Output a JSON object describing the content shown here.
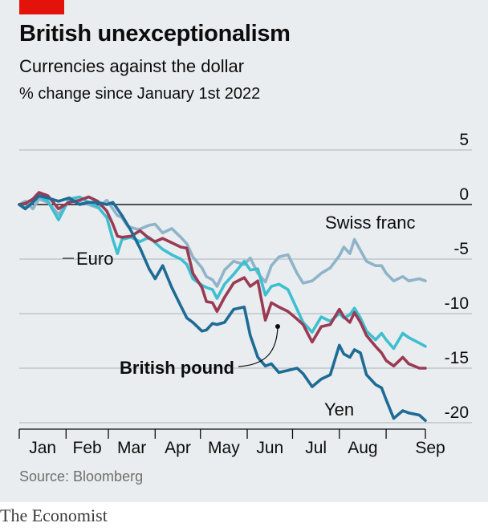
{
  "title": "British unexceptionalism",
  "subtitle": "Currencies against the dollar",
  "unit_label": "% change since January 1st 2022",
  "source": "Source: Bloomberg",
  "footer": "The Economist",
  "colors": {
    "euro": "#3ebfd0",
    "swiss_franc": "#8fb3c9",
    "british_pound": "#9a3b54",
    "yen": "#1e6b96",
    "grid": "#a7b3bb",
    "zero_line": "#1a1a1a",
    "panel": "#e9edf0",
    "brand_red": "#e3120b"
  },
  "chart_data": {
    "type": "line",
    "title": "British unexceptionalism",
    "subtitle": "Currencies against the dollar",
    "ylabel": "% change since January 1st 2022",
    "ylim": [
      -20,
      5
    ],
    "y_ticks": [
      5,
      0,
      -5,
      -10,
      -15,
      -20
    ],
    "y_tick_labels": [
      "5",
      "0",
      "-5",
      "-10",
      "-15",
      "-20"
    ],
    "x_tick_labels": [
      "Jan",
      "Feb",
      "Mar",
      "Apr",
      "May",
      "Jun",
      "Jul",
      "Aug",
      "Sep"
    ],
    "x_period": "2022-01-01 to 2022-09-27",
    "grid": true,
    "series": [
      {
        "name": "Swiss franc",
        "key": "swiss_franc",
        "points": [
          [
            "2022-01-01",
            0
          ],
          [
            "2022-01-05",
            0.3
          ],
          [
            "2022-01-10",
            -0.4
          ],
          [
            "2022-01-14",
            0.5
          ],
          [
            "2022-01-20",
            0.2
          ],
          [
            "2022-01-27",
            -0.9
          ],
          [
            "2022-02-03",
            0.3
          ],
          [
            "2022-02-10",
            0.2
          ],
          [
            "2022-02-16",
            0.0
          ],
          [
            "2022-02-22",
            -0.3
          ],
          [
            "2022-02-28",
            0.4
          ],
          [
            "2022-03-07",
            -1.0
          ],
          [
            "2022-03-10",
            -1.2
          ],
          [
            "2022-03-14",
            -2.0
          ],
          [
            "2022-03-21",
            -2.3
          ],
          [
            "2022-03-28",
            -1.9
          ],
          [
            "2022-04-01",
            -1.8
          ],
          [
            "2022-04-06",
            -2.6
          ],
          [
            "2022-04-12",
            -2.2
          ],
          [
            "2022-04-18",
            -3.0
          ],
          [
            "2022-04-22",
            -3.6
          ],
          [
            "2022-04-26",
            -4.8
          ],
          [
            "2022-05-02",
            -5.8
          ],
          [
            "2022-05-05",
            -6.6
          ],
          [
            "2022-05-09",
            -6.9
          ],
          [
            "2022-05-12",
            -7.5
          ],
          [
            "2022-05-17",
            -6.0
          ],
          [
            "2022-05-23",
            -5.2
          ],
          [
            "2022-05-30",
            -5.5
          ],
          [
            "2022-06-03",
            -4.9
          ],
          [
            "2022-06-08",
            -6.3
          ],
          [
            "2022-06-13",
            -7.1
          ],
          [
            "2022-06-17",
            -5.6
          ],
          [
            "2022-06-22",
            -4.8
          ],
          [
            "2022-06-28",
            -4.6
          ],
          [
            "2022-07-04",
            -6.3
          ],
          [
            "2022-07-08",
            -7.2
          ],
          [
            "2022-07-14",
            -7.0
          ],
          [
            "2022-07-20",
            -6.3
          ],
          [
            "2022-07-26",
            -5.8
          ],
          [
            "2022-08-01",
            -4.7
          ],
          [
            "2022-08-04",
            -3.9
          ],
          [
            "2022-08-08",
            -4.5
          ],
          [
            "2022-08-11",
            -3.2
          ],
          [
            "2022-08-15",
            -4.2
          ],
          [
            "2022-08-19",
            -5.2
          ],
          [
            "2022-08-25",
            -5.6
          ],
          [
            "2022-08-29",
            -5.6
          ],
          [
            "2022-09-01",
            -6.3
          ],
          [
            "2022-09-06",
            -7.0
          ],
          [
            "2022-09-12",
            -6.6
          ],
          [
            "2022-09-16",
            -7.0
          ],
          [
            "2022-09-23",
            -6.8
          ],
          [
            "2022-09-27",
            -7.0
          ]
        ]
      },
      {
        "name": "Euro",
        "key": "euro",
        "points": [
          [
            "2022-01-01",
            0
          ],
          [
            "2022-01-05",
            -0.3
          ],
          [
            "2022-01-10",
            0.2
          ],
          [
            "2022-01-14",
            0.8
          ],
          [
            "2022-01-20",
            0.3
          ],
          [
            "2022-01-27",
            -1.4
          ],
          [
            "2022-02-03",
            0.5
          ],
          [
            "2022-02-10",
            0.7
          ],
          [
            "2022-02-16",
            0.2
          ],
          [
            "2022-02-22",
            -0.2
          ],
          [
            "2022-02-28",
            -1.2
          ],
          [
            "2022-03-04",
            -3.2
          ],
          [
            "2022-03-07",
            -4.5
          ],
          [
            "2022-03-10",
            -3.2
          ],
          [
            "2022-03-16",
            -3.0
          ],
          [
            "2022-03-22",
            -3.4
          ],
          [
            "2022-03-28",
            -3.0
          ],
          [
            "2022-04-01",
            -3.5
          ],
          [
            "2022-04-06",
            -4.1
          ],
          [
            "2022-04-12",
            -4.6
          ],
          [
            "2022-04-18",
            -5.0
          ],
          [
            "2022-04-22",
            -5.5
          ],
          [
            "2022-04-26",
            -6.8
          ],
          [
            "2022-05-02",
            -7.4
          ],
          [
            "2022-05-05",
            -7.6
          ],
          [
            "2022-05-09",
            -7.8
          ],
          [
            "2022-05-12",
            -8.6
          ],
          [
            "2022-05-17",
            -7.3
          ],
          [
            "2022-05-23",
            -6.4
          ],
          [
            "2022-05-30",
            -5.2
          ],
          [
            "2022-06-03",
            -6.0
          ],
          [
            "2022-06-08",
            -5.9
          ],
          [
            "2022-06-13",
            -8.3
          ],
          [
            "2022-06-17",
            -7.5
          ],
          [
            "2022-06-22",
            -7.3
          ],
          [
            "2022-06-28",
            -7.8
          ],
          [
            "2022-07-04",
            -9.6
          ],
          [
            "2022-07-08",
            -10.8
          ],
          [
            "2022-07-14",
            -11.7
          ],
          [
            "2022-07-20",
            -10.3
          ],
          [
            "2022-07-26",
            -10.7
          ],
          [
            "2022-08-01",
            -10.0
          ],
          [
            "2022-08-04",
            -10.4
          ],
          [
            "2022-08-08",
            -10.1
          ],
          [
            "2022-08-11",
            -9.5
          ],
          [
            "2022-08-15",
            -10.4
          ],
          [
            "2022-08-19",
            -11.6
          ],
          [
            "2022-08-25",
            -12.4
          ],
          [
            "2022-08-29",
            -11.8
          ],
          [
            "2022-09-01",
            -12.4
          ],
          [
            "2022-09-06",
            -13.2
          ],
          [
            "2022-09-12",
            -11.8
          ],
          [
            "2022-09-16",
            -12.2
          ],
          [
            "2022-09-23",
            -12.7
          ],
          [
            "2022-09-27",
            -13.0
          ]
        ]
      },
      {
        "name": "British pound",
        "key": "british_pound",
        "points": [
          [
            "2022-01-01",
            0
          ],
          [
            "2022-01-05",
            0.1
          ],
          [
            "2022-01-10",
            0.5
          ],
          [
            "2022-01-14",
            1.1
          ],
          [
            "2022-01-20",
            0.8
          ],
          [
            "2022-01-27",
            -0.4
          ],
          [
            "2022-02-03",
            0.2
          ],
          [
            "2022-02-10",
            0.4
          ],
          [
            "2022-02-16",
            0.7
          ],
          [
            "2022-02-22",
            0.3
          ],
          [
            "2022-02-28",
            -0.6
          ],
          [
            "2022-03-04",
            -1.8
          ],
          [
            "2022-03-07",
            -2.9
          ],
          [
            "2022-03-10",
            -3.0
          ],
          [
            "2022-03-16",
            -2.9
          ],
          [
            "2022-03-22",
            -2.4
          ],
          [
            "2022-03-28",
            -3.1
          ],
          [
            "2022-04-01",
            -3.4
          ],
          [
            "2022-04-06",
            -3.1
          ],
          [
            "2022-04-12",
            -3.5
          ],
          [
            "2022-04-18",
            -3.9
          ],
          [
            "2022-04-22",
            -4.0
          ],
          [
            "2022-04-26",
            -6.3
          ],
          [
            "2022-05-02",
            -7.6
          ],
          [
            "2022-05-05",
            -8.9
          ],
          [
            "2022-05-09",
            -9.0
          ],
          [
            "2022-05-12",
            -9.8
          ],
          [
            "2022-05-17",
            -8.5
          ],
          [
            "2022-05-23",
            -7.2
          ],
          [
            "2022-05-30",
            -6.7
          ],
          [
            "2022-06-03",
            -7.5
          ],
          [
            "2022-06-08",
            -7.0
          ],
          [
            "2022-06-13",
            -10.6
          ],
          [
            "2022-06-17",
            -9.0
          ],
          [
            "2022-06-22",
            -9.4
          ],
          [
            "2022-06-28",
            -9.8
          ],
          [
            "2022-07-04",
            -10.5
          ],
          [
            "2022-07-08",
            -11.0
          ],
          [
            "2022-07-14",
            -12.6
          ],
          [
            "2022-07-20",
            -11.2
          ],
          [
            "2022-07-26",
            -11.0
          ],
          [
            "2022-08-01",
            -9.6
          ],
          [
            "2022-08-04",
            -10.3
          ],
          [
            "2022-08-08",
            -10.8
          ],
          [
            "2022-08-11",
            -9.9
          ],
          [
            "2022-08-15",
            -10.8
          ],
          [
            "2022-08-19",
            -12.0
          ],
          [
            "2022-08-25",
            -13.0
          ],
          [
            "2022-08-29",
            -13.6
          ],
          [
            "2022-09-01",
            -14.3
          ],
          [
            "2022-09-06",
            -14.8
          ],
          [
            "2022-09-12",
            -14.0
          ],
          [
            "2022-09-16",
            -14.6
          ],
          [
            "2022-09-23",
            -15.0
          ],
          [
            "2022-09-27",
            -15.0
          ]
        ]
      },
      {
        "name": "Yen",
        "key": "yen",
        "points": [
          [
            "2022-01-01",
            0
          ],
          [
            "2022-01-05",
            -0.4
          ],
          [
            "2022-01-10",
            0.2
          ],
          [
            "2022-01-14",
            0.8
          ],
          [
            "2022-01-20",
            0.6
          ],
          [
            "2022-01-27",
            0.3
          ],
          [
            "2022-02-03",
            0.6
          ],
          [
            "2022-02-10",
            0.0
          ],
          [
            "2022-02-16",
            0.2
          ],
          [
            "2022-02-22",
            0.2
          ],
          [
            "2022-02-28",
            0.0
          ],
          [
            "2022-03-04",
            0.2
          ],
          [
            "2022-03-07",
            -0.4
          ],
          [
            "2022-03-10",
            -1.0
          ],
          [
            "2022-03-16",
            -2.4
          ],
          [
            "2022-03-22",
            -4.0
          ],
          [
            "2022-03-28",
            -5.9
          ],
          [
            "2022-04-01",
            -6.8
          ],
          [
            "2022-04-06",
            -5.6
          ],
          [
            "2022-04-12",
            -7.6
          ],
          [
            "2022-04-18",
            -9.3
          ],
          [
            "2022-04-22",
            -10.4
          ],
          [
            "2022-04-26",
            -10.8
          ],
          [
            "2022-05-02",
            -11.6
          ],
          [
            "2022-05-05",
            -11.5
          ],
          [
            "2022-05-09",
            -10.9
          ],
          [
            "2022-05-12",
            -11.0
          ],
          [
            "2022-05-17",
            -10.8
          ],
          [
            "2022-05-23",
            -9.6
          ],
          [
            "2022-05-30",
            -9.4
          ],
          [
            "2022-06-03",
            -12.0
          ],
          [
            "2022-06-08",
            -14.0
          ],
          [
            "2022-06-13",
            -14.8
          ],
          [
            "2022-06-17",
            -14.6
          ],
          [
            "2022-06-22",
            -15.4
          ],
          [
            "2022-06-28",
            -15.2
          ],
          [
            "2022-07-04",
            -15.0
          ],
          [
            "2022-07-08",
            -15.5
          ],
          [
            "2022-07-14",
            -16.7
          ],
          [
            "2022-07-20",
            -16.0
          ],
          [
            "2022-07-26",
            -15.6
          ],
          [
            "2022-08-01",
            -12.9
          ],
          [
            "2022-08-04",
            -13.7
          ],
          [
            "2022-08-08",
            -14.0
          ],
          [
            "2022-08-11",
            -13.3
          ],
          [
            "2022-08-15",
            -13.6
          ],
          [
            "2022-08-19",
            -15.6
          ],
          [
            "2022-08-25",
            -16.5
          ],
          [
            "2022-08-29",
            -16.8
          ],
          [
            "2022-09-01",
            -17.9
          ],
          [
            "2022-09-06",
            -19.6
          ],
          [
            "2022-09-12",
            -18.9
          ],
          [
            "2022-09-16",
            -19.1
          ],
          [
            "2022-09-23",
            -19.3
          ],
          [
            "2022-09-27",
            -19.8
          ]
        ]
      }
    ],
    "labels": [
      {
        "text": "Swiss franc",
        "key": "swiss_franc",
        "series": "Swiss franc",
        "color": "#0c0c0c",
        "bold": false
      },
      {
        "text": "Euro",
        "key": "euro",
        "series": "Euro",
        "color": "#0c0c0c",
        "bold": false
      },
      {
        "text": "British pound",
        "key": "british_pound",
        "series": "British pound",
        "color": "#0c0c0c",
        "bold": true
      },
      {
        "text": "Yen",
        "key": "yen",
        "series": "Yen",
        "color": "#0c0c0c",
        "bold": false
      }
    ]
  }
}
